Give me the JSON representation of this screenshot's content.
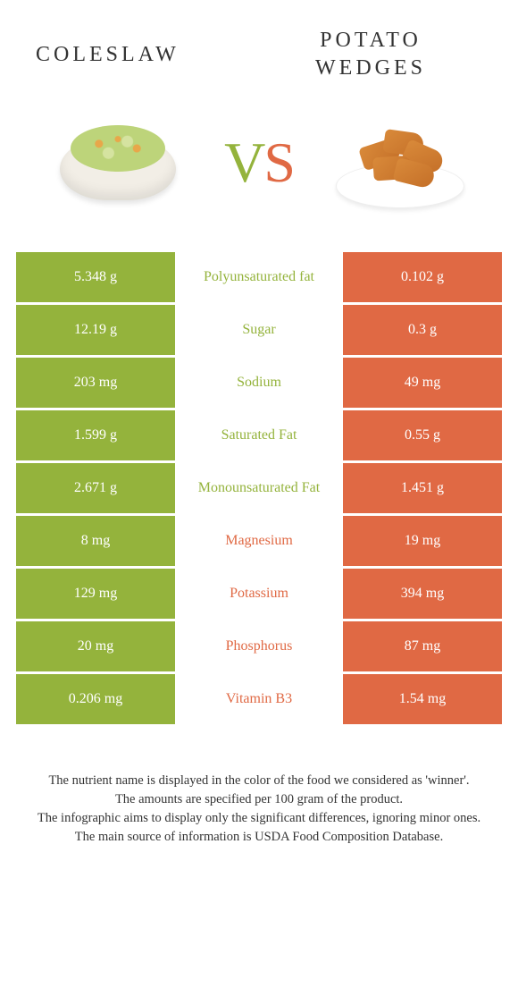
{
  "colors": {
    "left": "#94b33c",
    "right": "#e06944",
    "text": "#333333"
  },
  "header": {
    "left_title": "COLESLAW",
    "right_title_line1": "POTATO",
    "right_title_line2": "WEDGES"
  },
  "vs": {
    "v": "V",
    "s": "S"
  },
  "rows": [
    {
      "left": "5.348 g",
      "label": "Polyunsaturated fat",
      "right": "0.102 g",
      "winner": "left"
    },
    {
      "left": "12.19 g",
      "label": "Sugar",
      "right": "0.3 g",
      "winner": "left"
    },
    {
      "left": "203 mg",
      "label": "Sodium",
      "right": "49 mg",
      "winner": "left"
    },
    {
      "left": "1.599 g",
      "label": "Saturated Fat",
      "right": "0.55 g",
      "winner": "left"
    },
    {
      "left": "2.671 g",
      "label": "Monounsaturated Fat",
      "right": "1.451 g",
      "winner": "left"
    },
    {
      "left": "8 mg",
      "label": "Magnesium",
      "right": "19 mg",
      "winner": "right"
    },
    {
      "left": "129 mg",
      "label": "Potassium",
      "right": "394 mg",
      "winner": "right"
    },
    {
      "left": "20 mg",
      "label": "Phosphorus",
      "right": "87 mg",
      "winner": "right"
    },
    {
      "left": "0.206 mg",
      "label": "Vitamin B3",
      "right": "1.54 mg",
      "winner": "right"
    }
  ],
  "footnotes": [
    "The nutrient name is displayed in the color of the food we considered as 'winner'.",
    "The amounts are specified per 100 gram of the product.",
    "The infographic aims to display only the significant differences, ignoring minor ones.",
    "The main source of information is USDA Food Composition Database."
  ]
}
